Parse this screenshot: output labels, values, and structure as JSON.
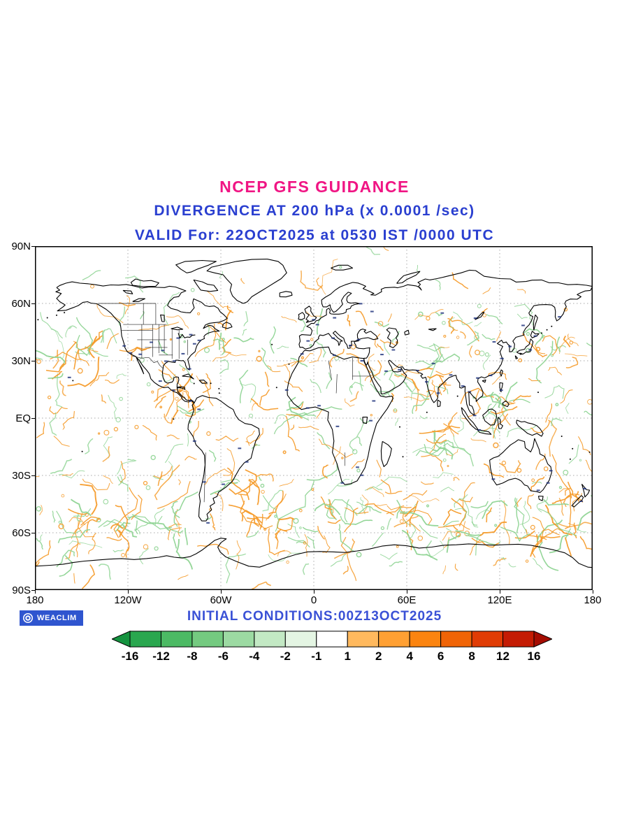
{
  "page": {
    "background": "#ffffff"
  },
  "titles": {
    "line1": "NCEP GFS GUIDANCE",
    "line2": "DIVERGENCE AT 200 hPa (x 0.0001 /sec)",
    "line3": "VALID For: 22OCT2025 at 0530 IST /0000 UTC",
    "line1_color": "#f01584",
    "line2_color": "#2a3fd0",
    "line3_color": "#2a3fd0"
  },
  "map": {
    "y_ticks": [
      "90N",
      "60N",
      "30N",
      "EQ",
      "30S",
      "60S",
      "90S"
    ],
    "x_ticks": [
      "180",
      "120W",
      "60W",
      "0",
      "60E",
      "120E",
      "180"
    ],
    "coast_color": "#000000",
    "border_color": "#222222",
    "grid_color": "#a8a8a8",
    "frame_color": "#000000",
    "divergence_positive_color": "#f59b2a",
    "divergence_negative_color": "#8fd494",
    "station_mark_color": "#1b2f7a"
  },
  "footer": {
    "logo_text": "WEACLIM",
    "logo_bg": "#2f55cf",
    "initial_conditions": "INITIAL CONDITIONS:00Z13OCT2025",
    "initial_conditions_color": "#3a51d6"
  },
  "chart_data": {
    "type": "heatmap",
    "title": "NCEP GFS GUIDANCE",
    "subtitle": "DIVERGENCE AT 200 hPa (x 0.0001 /sec)",
    "valid_label": "VALID For: 22OCT2025 at 0530 IST /0000 UTC",
    "initial_conditions": "INITIAL CONDITIONS:00Z13OCT2025",
    "variable": "Divergence at 200 hPa",
    "units": "x 0.0001 /sec",
    "projection": "global equirectangular, 90N-90S, 180W-180E",
    "grid": "dotted graticule every 30 degrees",
    "x_tick_labels": [
      "180",
      "120W",
      "60W",
      "0",
      "60E",
      "120E",
      "180"
    ],
    "y_tick_labels": [
      "90N",
      "60N",
      "30N",
      "EQ",
      "30S",
      "60S",
      "90S"
    ],
    "legend_position": "horizontal colorbar below map",
    "colorbar": {
      "levels": [
        -16,
        -12,
        -8,
        -6,
        -4,
        -2,
        -1,
        1,
        2,
        4,
        6,
        8,
        12,
        16
      ],
      "colors": [
        "#15933f",
        "#2aa74f",
        "#4cba64",
        "#74ca80",
        "#9cdaa2",
        "#c3e9c4",
        "#e4f5e3",
        "#ffffff",
        "#ffb95e",
        "#ffa033",
        "#fb8410",
        "#f06406",
        "#e03c05",
        "#c41c04",
        "#a50d02"
      ]
    }
  }
}
